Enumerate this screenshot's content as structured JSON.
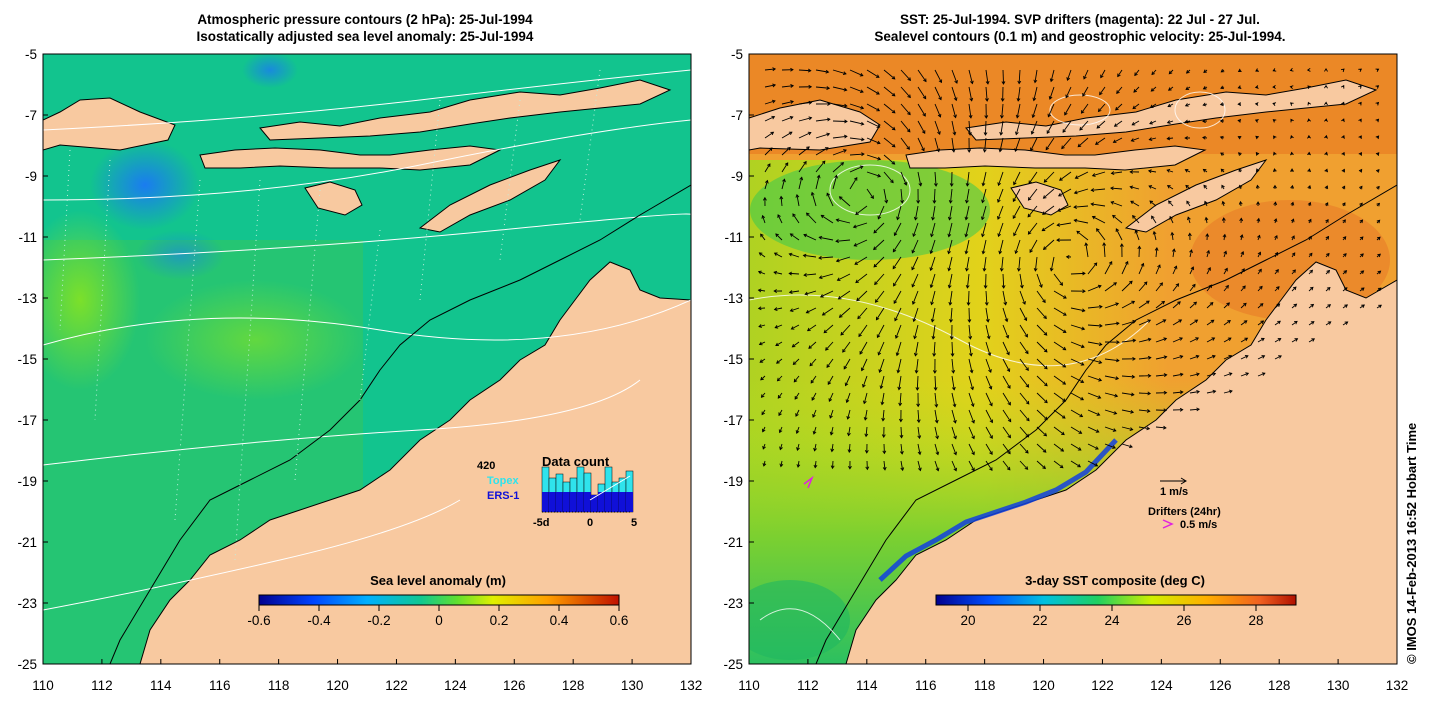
{
  "left_panel": {
    "title_line1": "Atmospheric pressure contours (2 hPa): 25-Jul-1994",
    "title_line2": "Isostatically adjusted sea level anomaly: 25-Jul-1994",
    "colorbar_title": "Sea level anomaly (m)",
    "colorbar_ticks": [
      "-0.6",
      "-0.4",
      "-0.2",
      "0",
      "0.2",
      "0.4",
      "0.6"
    ],
    "inset": {
      "count": "420",
      "topex_label": "Topex",
      "ers_label": "ERS-1",
      "title": "Data count",
      "axis_ticks": [
        "-5d",
        "0",
        "5"
      ],
      "topex_color": "#2fe3ec",
      "ers_color": "#1010d8"
    }
  },
  "right_panel": {
    "title_line1": "SST: 25-Jul-1994. SVP drifters (magenta): 22 Jul - 27 Jul.",
    "title_line2": "Sealevel contours (0.1 m) and geostrophic velocity: 25-Jul-1994.",
    "colorbar_title": "3-day SST composite (deg C)",
    "colorbar_ticks": [
      "20",
      "22",
      "24",
      "26",
      "28"
    ],
    "velocity_scale_label": "1 m/s",
    "drifters_label": "Drifters (24hr)",
    "drifter_speed_label": "0.5 m/s",
    "drifter_color": "#e020e0"
  },
  "axes": {
    "y_ticks": [
      "-5",
      "-7",
      "-9",
      "-11",
      "-13",
      "-15",
      "-17",
      "-19",
      "-21",
      "-23",
      "-25"
    ],
    "x_ticks": [
      "110",
      "112",
      "114",
      "116",
      "118",
      "120",
      "122",
      "124",
      "126",
      "128",
      "130",
      "132"
    ]
  },
  "credit": "© IMOS 14-Feb-2013 16:52 Hobart Time",
  "colors": {
    "land": "#f8c9a0",
    "sla_ocean": "#12c48e",
    "sst_ocean": "#f0a030"
  }
}
